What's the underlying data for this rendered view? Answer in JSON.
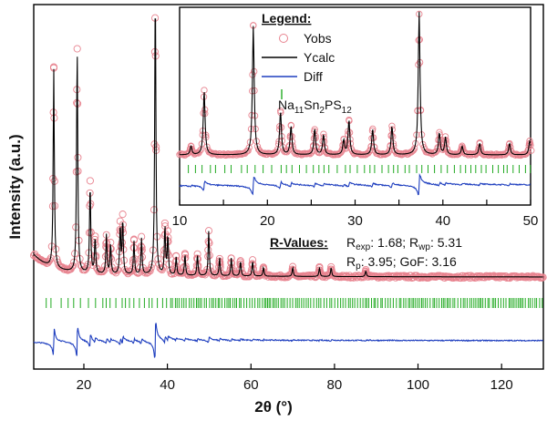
{
  "chart_data": {
    "type": "line",
    "xlabel": "2θ (°)",
    "ylabel": "Intensity (a.u.)",
    "main": {
      "xlim": [
        8,
        130
      ],
      "xticks": [
        20,
        40,
        60,
        80,
        100,
        120
      ],
      "background": 0.085,
      "peaks": [
        {
          "x": 12.8,
          "h": 0.66
        },
        {
          "x": 18.4,
          "h": 0.76
        },
        {
          "x": 21.5,
          "h": 0.3
        },
        {
          "x": 22.7,
          "h": 0.12
        },
        {
          "x": 25.4,
          "h": 0.13
        },
        {
          "x": 26.4,
          "h": 0.1
        },
        {
          "x": 28.7,
          "h": 0.16
        },
        {
          "x": 29.3,
          "h": 0.18
        },
        {
          "x": 32.0,
          "h": 0.11
        },
        {
          "x": 33.8,
          "h": 0.12
        },
        {
          "x": 37.1,
          "h": 0.97
        },
        {
          "x": 39.4,
          "h": 0.16
        },
        {
          "x": 40.1,
          "h": 0.13
        },
        {
          "x": 42.1,
          "h": 0.06
        },
        {
          "x": 44.2,
          "h": 0.07
        },
        {
          "x": 47.2,
          "h": 0.07
        },
        {
          "x": 49.9,
          "h": 0.15
        },
        {
          "x": 52.5,
          "h": 0.06
        },
        {
          "x": 55.3,
          "h": 0.06
        },
        {
          "x": 57.5,
          "h": 0.05
        },
        {
          "x": 60.4,
          "h": 0.05
        },
        {
          "x": 63.0,
          "h": 0.03
        },
        {
          "x": 70.0,
          "h": 0.03
        },
        {
          "x": 76.4,
          "h": 0.03
        },
        {
          "x": 79.2,
          "h": 0.03
        },
        {
          "x": 87.5,
          "h": 0.02
        }
      ],
      "reflection_range": [
        11,
        130
      ]
    },
    "inset": {
      "xlim": [
        10,
        50
      ],
      "xticks": [
        10,
        15,
        20,
        25,
        30,
        35,
        40,
        45,
        50
      ],
      "xticklabels": [
        "10",
        "",
        "20",
        "",
        "30",
        "",
        "40",
        "",
        "50"
      ],
      "peaks": [
        {
          "x": 11.3,
          "h": 0.06
        },
        {
          "x": 12.8,
          "h": 0.45
        },
        {
          "x": 18.4,
          "h": 0.9
        },
        {
          "x": 21.5,
          "h": 0.3
        },
        {
          "x": 22.7,
          "h": 0.2
        },
        {
          "x": 25.4,
          "h": 0.18
        },
        {
          "x": 26.4,
          "h": 0.14
        },
        {
          "x": 28.7,
          "h": 0.1
        },
        {
          "x": 29.3,
          "h": 0.24
        },
        {
          "x": 32.0,
          "h": 0.18
        },
        {
          "x": 34.2,
          "h": 0.2
        },
        {
          "x": 37.3,
          "h": 1.0
        },
        {
          "x": 39.6,
          "h": 0.15
        },
        {
          "x": 40.3,
          "h": 0.12
        },
        {
          "x": 42.2,
          "h": 0.06
        },
        {
          "x": 44.2,
          "h": 0.08
        },
        {
          "x": 47.6,
          "h": 0.08
        },
        {
          "x": 49.9,
          "h": 0.1
        }
      ]
    },
    "legend": {
      "title": "Legend:",
      "entries": [
        {
          "label": "Yobs",
          "kind": "circle",
          "color": "#e89aa8"
        },
        {
          "label": "Ycalc",
          "kind": "line",
          "color": "#000000"
        },
        {
          "label": "Diff",
          "kind": "line",
          "color": "#1f3fbf"
        },
        {
          "label": "Na11Sn2PS12",
          "kind": "tick",
          "color": "#22aa22"
        }
      ],
      "phase": {
        "parts": [
          "Na",
          "11",
          "Sn",
          "2",
          "PS",
          "12"
        ]
      }
    },
    "r_values": {
      "title": "R-Values:",
      "R_exp": "1.68",
      "R_wp": "5.31",
      "R_p": "3.95",
      "GoF": "3.16"
    },
    "colors": {
      "obs": "#e8838f",
      "calc": "#000000",
      "diff": "#1f3fbf",
      "ticks": "#22aa22"
    }
  }
}
